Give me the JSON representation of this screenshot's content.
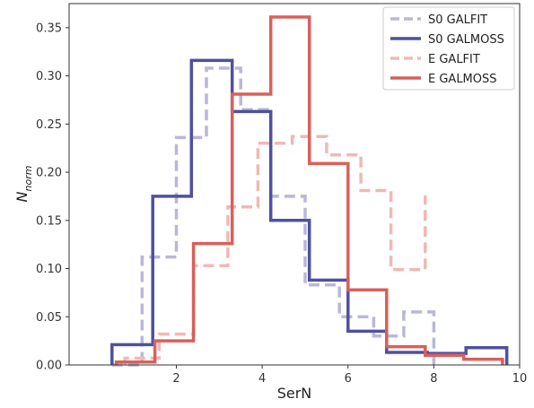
{
  "chart_data": {
    "type": "line",
    "xlabel": "SerN",
    "ylabel_main": "N",
    "ylabel_sub": "norm",
    "xlim": [
      -0.5,
      10
    ],
    "ylim": [
      0,
      0.375
    ],
    "xticks": [
      2,
      4,
      6,
      8,
      10
    ],
    "yticks": [
      0.0,
      0.05,
      0.1,
      0.15,
      0.2,
      0.25,
      0.3,
      0.35
    ],
    "grid": false,
    "legend_position": "top-right",
    "series": [
      {
        "name": "S0 GALFIT",
        "color": "#b8b8d8",
        "style": "dashed",
        "x": [
          0.5,
          1.2,
          1.2,
          2.0,
          2.0,
          2.7,
          2.7,
          3.5,
          3.5,
          4.2,
          4.2,
          5.0,
          5.0,
          5.8,
          5.8,
          6.6,
          6.6,
          7.3,
          7.3,
          8.0,
          8.0
        ],
        "y": [
          0,
          0,
          0.112,
          0.112,
          0.236,
          0.236,
          0.308,
          0.308,
          0.265,
          0.265,
          0.175,
          0.175,
          0.083,
          0.083,
          0.05,
          0.05,
          0.03,
          0.03,
          0.055,
          0.055,
          0
        ]
      },
      {
        "name": "S0 GALMOSS",
        "color": "#5050a0",
        "style": "solid",
        "x": [
          0.5,
          0.5,
          1.45,
          1.45,
          2.35,
          2.35,
          3.3,
          3.3,
          4.2,
          4.2,
          5.1,
          5.1,
          6.0,
          6.0,
          6.9,
          6.9,
          7.85,
          7.85,
          8.75,
          8.75,
          9.7,
          9.7
        ],
        "y": [
          0,
          0.021,
          0.021,
          0.175,
          0.175,
          0.316,
          0.316,
          0.263,
          0.263,
          0.15,
          0.15,
          0.088,
          0.088,
          0.035,
          0.035,
          0.013,
          0.013,
          0.012,
          0.012,
          0.018,
          0.018,
          0
        ]
      },
      {
        "name": "E GALFIT",
        "color": "#f0b8b8",
        "style": "dashed",
        "x": [
          0.8,
          0.8,
          1.6,
          1.6,
          2.4,
          2.4,
          3.2,
          3.2,
          3.9,
          3.9,
          4.7,
          4.7,
          5.5,
          5.5,
          6.3,
          6.3,
          7.0,
          7.0,
          7.8,
          7.8
        ],
        "y": [
          0,
          0.007,
          0.007,
          0.032,
          0.032,
          0.103,
          0.103,
          0.164,
          0.164,
          0.23,
          0.23,
          0.237,
          0.237,
          0.218,
          0.218,
          0.181,
          0.181,
          0.099,
          0.099,
          0.176
        ]
      },
      {
        "name": "E GALMOSS",
        "color": "#d8605c",
        "style": "solid",
        "x": [
          0.6,
          0.6,
          1.5,
          1.5,
          2.4,
          2.4,
          3.3,
          3.3,
          4.2,
          4.2,
          5.1,
          5.1,
          6.0,
          6.0,
          6.9,
          6.9,
          7.8,
          7.8,
          8.7,
          8.7,
          9.6,
          9.6
        ],
        "y": [
          0,
          0.003,
          0.003,
          0.025,
          0.025,
          0.126,
          0.126,
          0.281,
          0.281,
          0.361,
          0.361,
          0.209,
          0.209,
          0.078,
          0.078,
          0.019,
          0.019,
          0.01,
          0.01,
          0.006,
          0.006,
          0
        ]
      }
    ]
  }
}
